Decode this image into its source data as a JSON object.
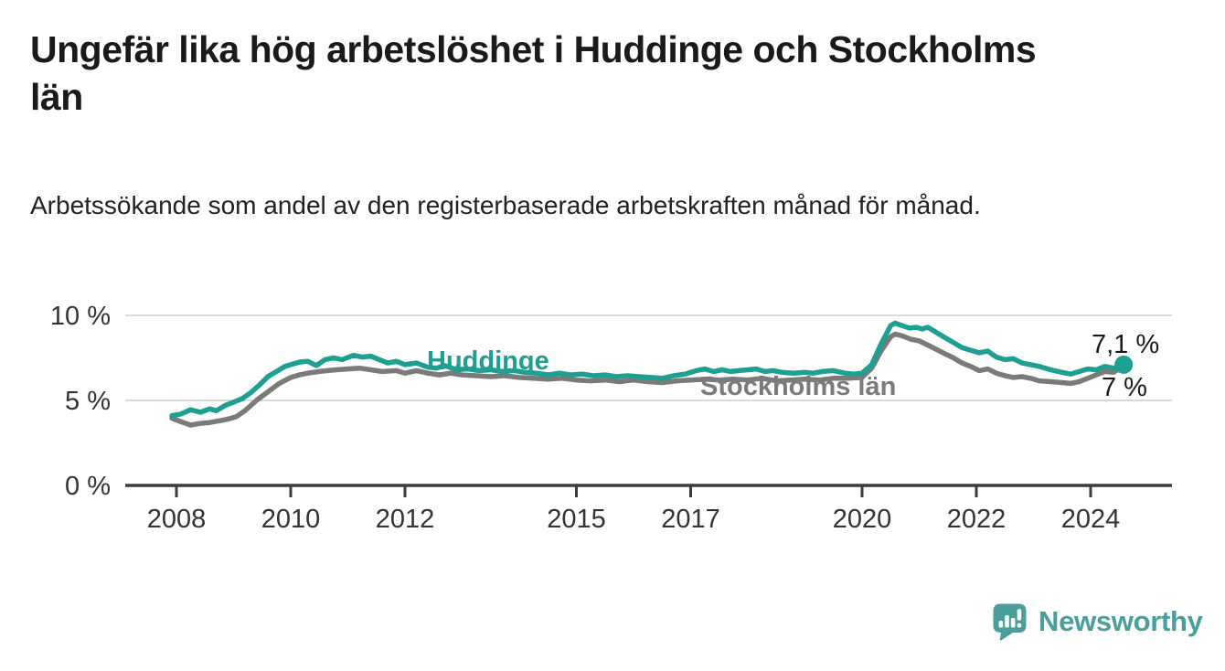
{
  "title": "Ungefär lika hög arbetslöshet i Huddinge och Stockholms län",
  "subtitle": "Arbetssökande som andel av den registerbaserade arbetskraften månad för månad.",
  "branding": {
    "name": "Newsworthy",
    "logo_icon": "bar-chart-speech-bubble-icon",
    "color": "#4A9E9B"
  },
  "chart_data": {
    "type": "line",
    "title": "Ungefär lika hög arbetslöshet i Huddinge och Stockholms län",
    "xlabel": "",
    "ylabel": "Arbetssökande som andel av den registerbaserade arbetskraften",
    "x_axis": {
      "range": [
        2007.9,
        2025.4
      ],
      "ticks": [
        {
          "value": 2008,
          "label": "2008"
        },
        {
          "value": 2010,
          "label": "2010"
        },
        {
          "value": 2012,
          "label": "2012"
        },
        {
          "value": 2015,
          "label": "2015"
        },
        {
          "value": 2017,
          "label": "2017"
        },
        {
          "value": 2020,
          "label": "2020"
        },
        {
          "value": 2022,
          "label": "2022"
        },
        {
          "value": 2024,
          "label": "2024"
        }
      ]
    },
    "y_axis": {
      "range": [
        0,
        10
      ],
      "ticks": [
        {
          "value": 0,
          "label": "0 %"
        },
        {
          "value": 5,
          "label": "5 %"
        },
        {
          "value": 10,
          "label": "10 %"
        }
      ]
    },
    "grid": "horizontal",
    "legend_position": "inline-labels",
    "style": {
      "grid_color": "#DADADA",
      "axis_color": "#3C3C3C",
      "tick_text_color": "#333333"
    },
    "series": [
      {
        "id": "stockholms-lan",
        "name": "Stockholms län",
        "color": "#7A7A7A",
        "end_dot": false,
        "end_value_label": "7 %",
        "points": [
          [
            2007.92,
            3.95
          ],
          [
            2008.08,
            3.75
          ],
          [
            2008.25,
            3.55
          ],
          [
            2008.42,
            3.65
          ],
          [
            2008.58,
            3.7
          ],
          [
            2008.75,
            3.8
          ],
          [
            2008.9,
            3.9
          ],
          [
            2009.05,
            4.05
          ],
          [
            2009.2,
            4.4
          ],
          [
            2009.4,
            5.0
          ],
          [
            2009.6,
            5.5
          ],
          [
            2009.8,
            6.0
          ],
          [
            2010.0,
            6.35
          ],
          [
            2010.15,
            6.5
          ],
          [
            2010.3,
            6.6
          ],
          [
            2010.5,
            6.7
          ],
          [
            2010.65,
            6.75
          ],
          [
            2010.8,
            6.8
          ],
          [
            2011.0,
            6.85
          ],
          [
            2011.2,
            6.9
          ],
          [
            2011.4,
            6.8
          ],
          [
            2011.6,
            6.7
          ],
          [
            2011.85,
            6.75
          ],
          [
            2012.0,
            6.6
          ],
          [
            2012.2,
            6.75
          ],
          [
            2012.4,
            6.6
          ],
          [
            2012.6,
            6.5
          ],
          [
            2012.8,
            6.6
          ],
          [
            2013.0,
            6.5
          ],
          [
            2013.25,
            6.45
          ],
          [
            2013.5,
            6.4
          ],
          [
            2013.75,
            6.45
          ],
          [
            2014.0,
            6.35
          ],
          [
            2014.25,
            6.3
          ],
          [
            2014.5,
            6.25
          ],
          [
            2014.75,
            6.3
          ],
          [
            2015.0,
            6.2
          ],
          [
            2015.25,
            6.15
          ],
          [
            2015.5,
            6.2
          ],
          [
            2015.75,
            6.1
          ],
          [
            2016.0,
            6.2
          ],
          [
            2016.25,
            6.1
          ],
          [
            2016.5,
            6.05
          ],
          [
            2016.75,
            6.15
          ],
          [
            2017.0,
            6.2
          ],
          [
            2017.25,
            6.25
          ],
          [
            2017.5,
            6.2
          ],
          [
            2017.75,
            6.25
          ],
          [
            2018.0,
            6.2
          ],
          [
            2018.25,
            6.3
          ],
          [
            2018.5,
            6.15
          ],
          [
            2018.75,
            6.2
          ],
          [
            2019.0,
            6.25
          ],
          [
            2019.25,
            6.2
          ],
          [
            2019.5,
            6.3
          ],
          [
            2019.75,
            6.3
          ],
          [
            2020.0,
            6.35
          ],
          [
            2020.17,
            6.9
          ],
          [
            2020.33,
            7.9
          ],
          [
            2020.5,
            8.75
          ],
          [
            2020.58,
            8.9
          ],
          [
            2020.7,
            8.8
          ],
          [
            2020.85,
            8.6
          ],
          [
            2021.0,
            8.5
          ],
          [
            2021.15,
            8.25
          ],
          [
            2021.3,
            8.0
          ],
          [
            2021.45,
            7.75
          ],
          [
            2021.6,
            7.5
          ],
          [
            2021.75,
            7.2
          ],
          [
            2021.9,
            7.0
          ],
          [
            2022.05,
            6.75
          ],
          [
            2022.2,
            6.85
          ],
          [
            2022.35,
            6.6
          ],
          [
            2022.5,
            6.45
          ],
          [
            2022.65,
            6.35
          ],
          [
            2022.8,
            6.4
          ],
          [
            2022.95,
            6.3
          ],
          [
            2023.1,
            6.15
          ],
          [
            2023.3,
            6.1
          ],
          [
            2023.5,
            6.05
          ],
          [
            2023.65,
            6.0
          ],
          [
            2023.8,
            6.1
          ],
          [
            2023.95,
            6.3
          ],
          [
            2024.1,
            6.5
          ],
          [
            2024.25,
            6.7
          ],
          [
            2024.4,
            6.65
          ],
          [
            2024.58,
            7.0
          ]
        ]
      },
      {
        "id": "huddinge",
        "name": "Huddinge",
        "color": "#1DA092",
        "end_dot": true,
        "end_value_label": "7,1 %",
        "points": [
          [
            2007.92,
            4.1
          ],
          [
            2008.08,
            4.2
          ],
          [
            2008.25,
            4.45
          ],
          [
            2008.42,
            4.3
          ],
          [
            2008.58,
            4.5
          ],
          [
            2008.7,
            4.4
          ],
          [
            2008.85,
            4.7
          ],
          [
            2009.0,
            4.9
          ],
          [
            2009.15,
            5.1
          ],
          [
            2009.3,
            5.45
          ],
          [
            2009.45,
            5.9
          ],
          [
            2009.6,
            6.4
          ],
          [
            2009.75,
            6.7
          ],
          [
            2009.9,
            7.0
          ],
          [
            2010.0,
            7.1
          ],
          [
            2010.15,
            7.25
          ],
          [
            2010.3,
            7.3
          ],
          [
            2010.45,
            7.05
          ],
          [
            2010.6,
            7.4
          ],
          [
            2010.75,
            7.5
          ],
          [
            2010.9,
            7.4
          ],
          [
            2011.1,
            7.65
          ],
          [
            2011.25,
            7.55
          ],
          [
            2011.4,
            7.6
          ],
          [
            2011.55,
            7.4
          ],
          [
            2011.7,
            7.2
          ],
          [
            2011.85,
            7.3
          ],
          [
            2012.0,
            7.1
          ],
          [
            2012.2,
            7.2
          ],
          [
            2012.4,
            6.95
          ],
          [
            2012.55,
            6.9
          ],
          [
            2012.7,
            7.05
          ],
          [
            2012.9,
            6.8
          ],
          [
            2013.1,
            6.85
          ],
          [
            2013.3,
            6.75
          ],
          [
            2013.5,
            6.8
          ],
          [
            2013.7,
            6.7
          ],
          [
            2013.9,
            6.75
          ],
          [
            2014.1,
            6.65
          ],
          [
            2014.3,
            6.6
          ],
          [
            2014.5,
            6.5
          ],
          [
            2014.7,
            6.6
          ],
          [
            2014.9,
            6.5
          ],
          [
            2015.1,
            6.55
          ],
          [
            2015.3,
            6.45
          ],
          [
            2015.5,
            6.5
          ],
          [
            2015.7,
            6.4
          ],
          [
            2015.9,
            6.45
          ],
          [
            2016.1,
            6.4
          ],
          [
            2016.3,
            6.35
          ],
          [
            2016.5,
            6.3
          ],
          [
            2016.7,
            6.45
          ],
          [
            2016.9,
            6.55
          ],
          [
            2017.1,
            6.75
          ],
          [
            2017.25,
            6.85
          ],
          [
            2017.4,
            6.7
          ],
          [
            2017.55,
            6.8
          ],
          [
            2017.7,
            6.7
          ],
          [
            2017.85,
            6.75
          ],
          [
            2018.0,
            6.8
          ],
          [
            2018.15,
            6.85
          ],
          [
            2018.3,
            6.7
          ],
          [
            2018.45,
            6.75
          ],
          [
            2018.6,
            6.65
          ],
          [
            2018.8,
            6.6
          ],
          [
            2019.0,
            6.65
          ],
          [
            2019.15,
            6.6
          ],
          [
            2019.3,
            6.7
          ],
          [
            2019.5,
            6.75
          ],
          [
            2019.7,
            6.6
          ],
          [
            2019.85,
            6.55
          ],
          [
            2020.0,
            6.6
          ],
          [
            2020.17,
            7.1
          ],
          [
            2020.33,
            8.3
          ],
          [
            2020.5,
            9.4
          ],
          [
            2020.58,
            9.55
          ],
          [
            2020.7,
            9.4
          ],
          [
            2020.83,
            9.25
          ],
          [
            2020.95,
            9.3
          ],
          [
            2021.05,
            9.2
          ],
          [
            2021.15,
            9.3
          ],
          [
            2021.3,
            9.0
          ],
          [
            2021.45,
            8.7
          ],
          [
            2021.6,
            8.4
          ],
          [
            2021.75,
            8.1
          ],
          [
            2021.9,
            7.95
          ],
          [
            2022.05,
            7.8
          ],
          [
            2022.2,
            7.9
          ],
          [
            2022.35,
            7.55
          ],
          [
            2022.5,
            7.4
          ],
          [
            2022.65,
            7.45
          ],
          [
            2022.8,
            7.2
          ],
          [
            2022.95,
            7.1
          ],
          [
            2023.1,
            7.0
          ],
          [
            2023.3,
            6.8
          ],
          [
            2023.5,
            6.65
          ],
          [
            2023.65,
            6.55
          ],
          [
            2023.8,
            6.7
          ],
          [
            2023.95,
            6.85
          ],
          [
            2024.1,
            6.8
          ],
          [
            2024.25,
            7.0
          ],
          [
            2024.4,
            6.9
          ],
          [
            2024.58,
            7.1
          ]
        ]
      }
    ],
    "annotations": [
      {
        "text": "7,1 %",
        "series": "Huddinge"
      },
      {
        "text": "7 %",
        "series": "Stockholms län"
      }
    ]
  }
}
